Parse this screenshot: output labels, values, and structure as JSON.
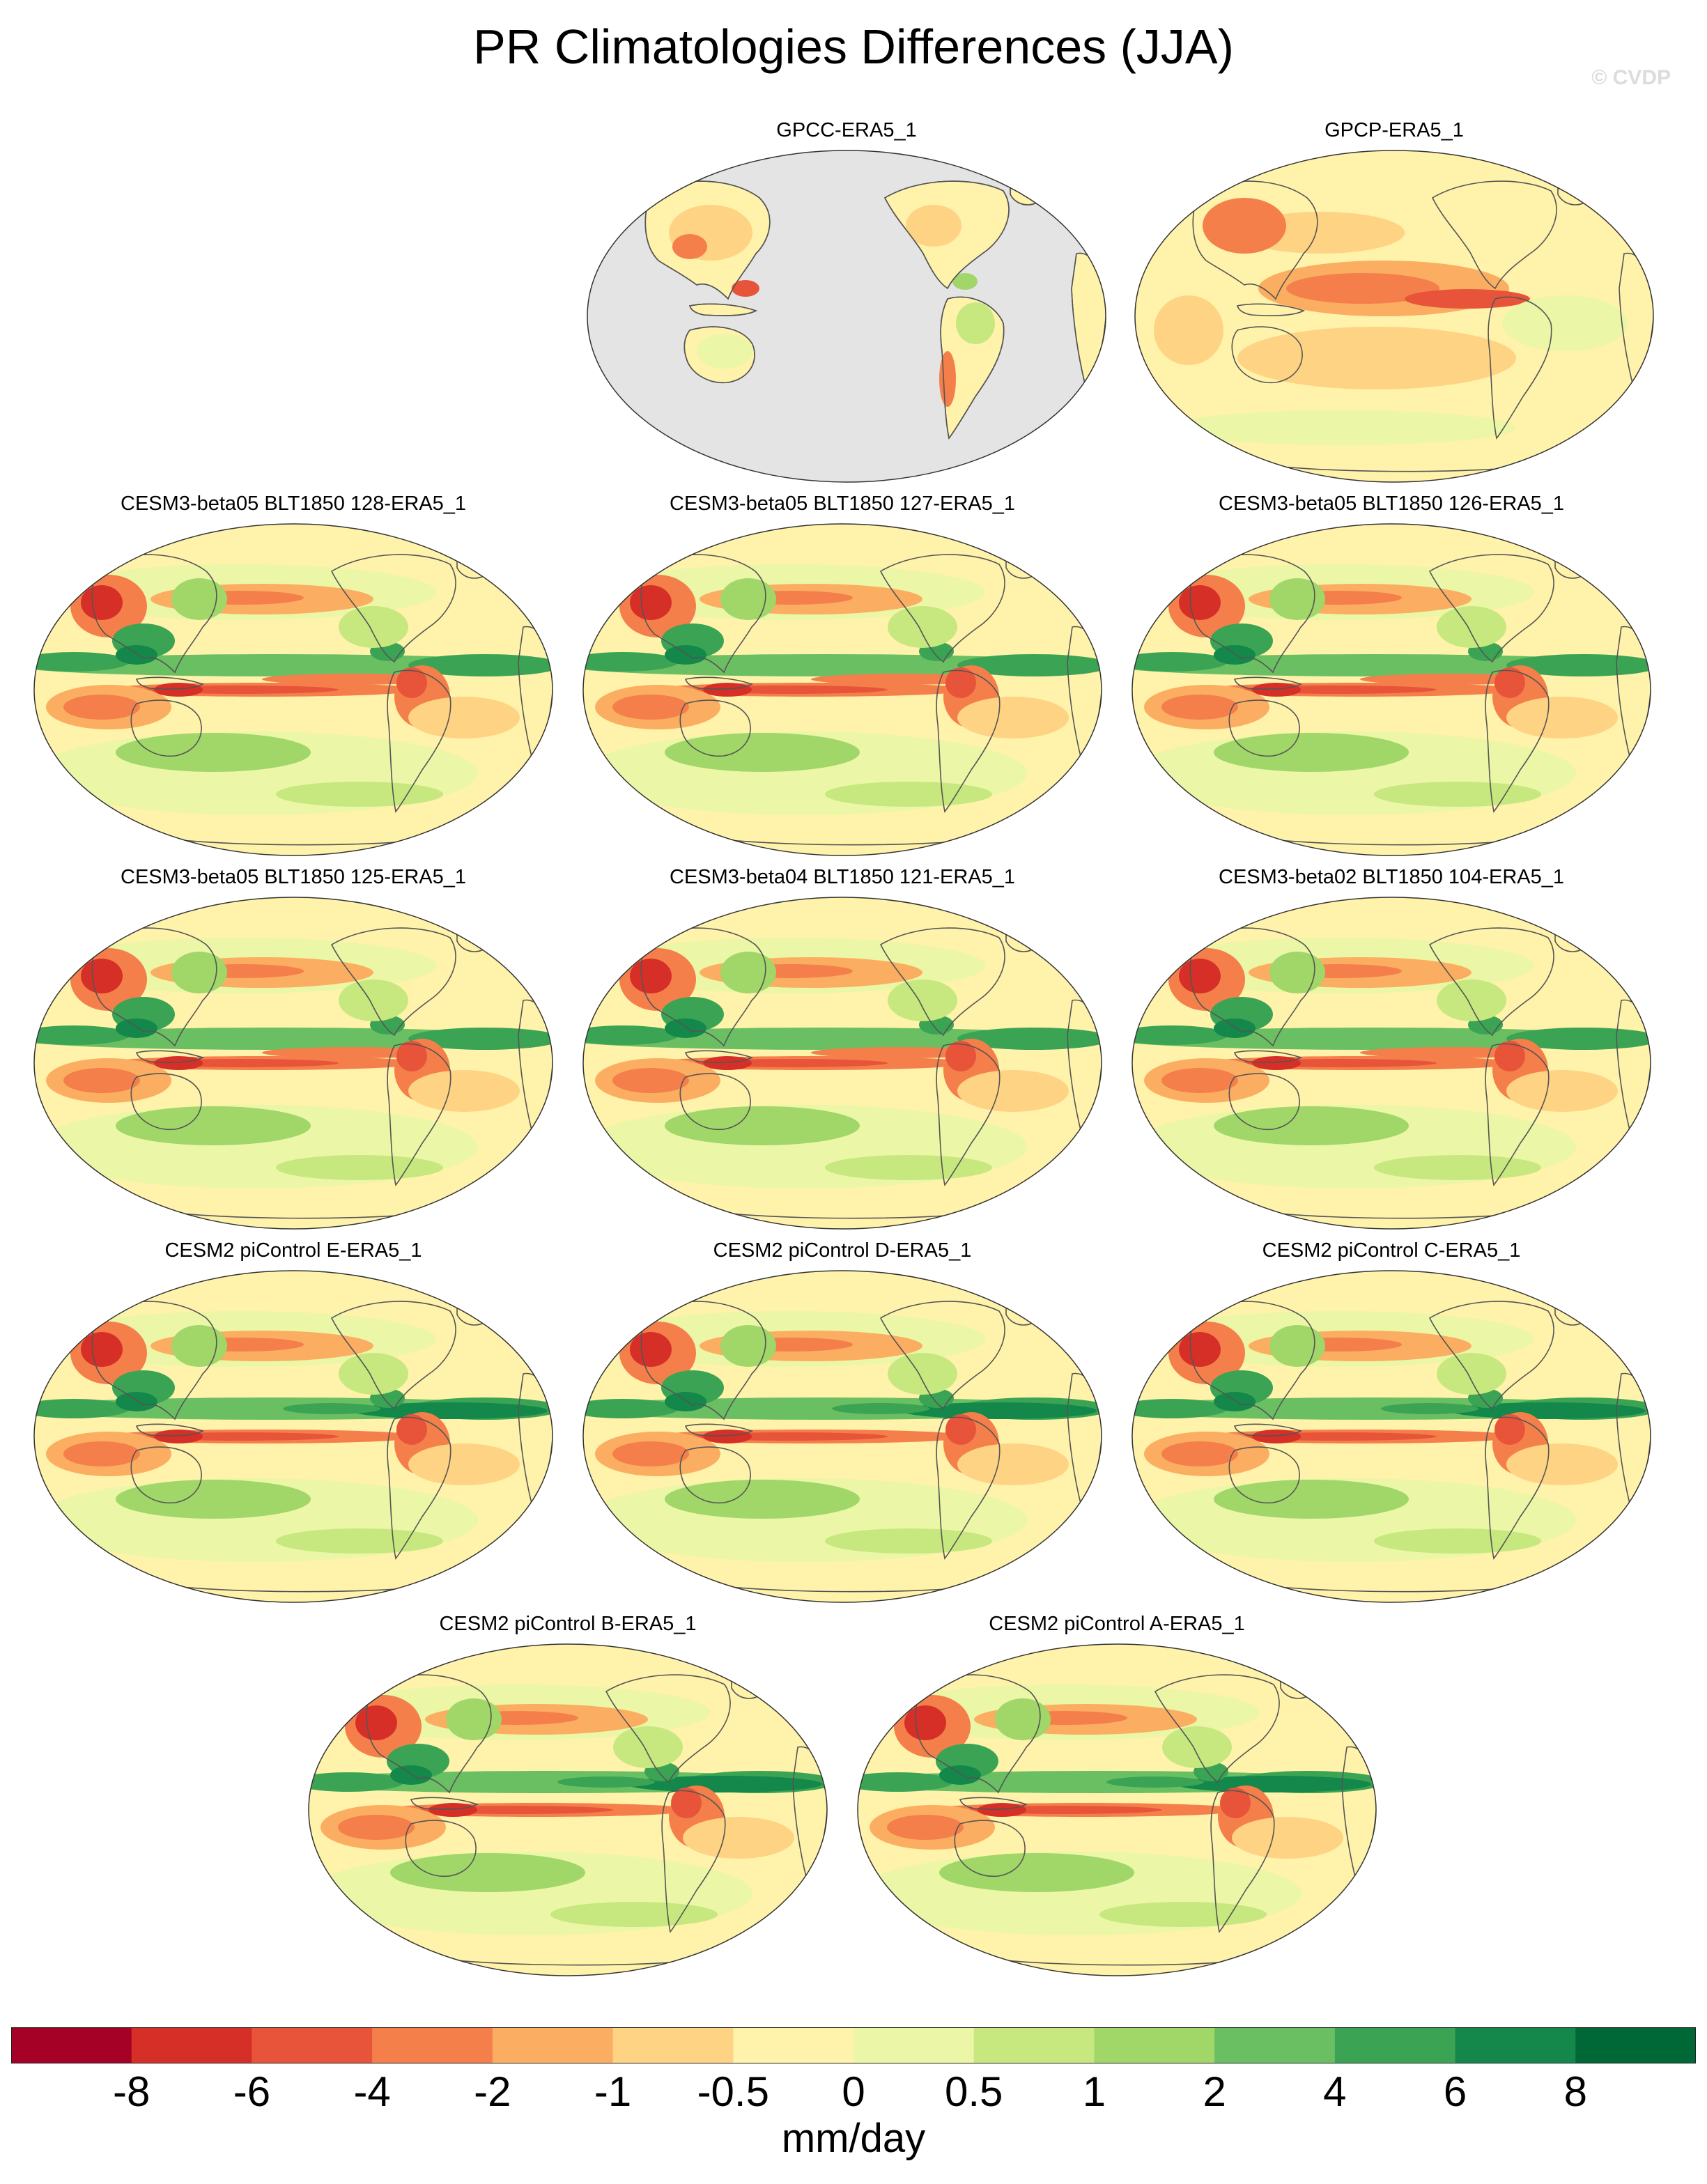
{
  "title": "PR Climatologies Differences (JJA)",
  "watermark": "© CVDP",
  "panels": [
    {
      "label": "GPCC-ERA5_1",
      "land_only": true
    },
    {
      "label": "GPCP-ERA5_1",
      "land_only": false
    },
    {
      "label": "CESM3-beta05 BLT1850 128-ERA5_1",
      "land_only": false
    },
    {
      "label": "CESM3-beta05 BLT1850 127-ERA5_1",
      "land_only": false
    },
    {
      "label": "CESM3-beta05 BLT1850 126-ERA5_1",
      "land_only": false
    },
    {
      "label": "CESM3-beta05 BLT1850 125-ERA5_1",
      "land_only": false
    },
    {
      "label": "CESM3-beta04 BLT1850 121-ERA5_1",
      "land_only": false
    },
    {
      "label": "CESM3-beta02 BLT1850 104-ERA5_1",
      "land_only": false
    },
    {
      "label": "CESM2 piControl E-ERA5_1",
      "land_only": false
    },
    {
      "label": "CESM2 piControl D-ERA5_1",
      "land_only": false
    },
    {
      "label": "CESM2 piControl C-ERA5_1",
      "land_only": false
    },
    {
      "label": "CESM2 piControl B-ERA5_1",
      "land_only": false
    },
    {
      "label": "CESM2 piControl A-ERA5_1",
      "land_only": false
    }
  ],
  "colorbar": {
    "colors": [
      "#a50026",
      "#d62f27",
      "#e8543a",
      "#f47f4a",
      "#fbae61",
      "#fed383",
      "#fff2aa",
      "#ebf6a6",
      "#c6e87e",
      "#a1d669",
      "#6bbf63",
      "#3ba454",
      "#14874a",
      "#006837"
    ],
    "ticks": [
      "-8",
      "-6",
      "-4",
      "-2",
      "-1",
      "-0.5",
      "0",
      "0.5",
      "1",
      "2",
      "4",
      "6",
      "8"
    ],
    "units": "mm/day"
  }
}
